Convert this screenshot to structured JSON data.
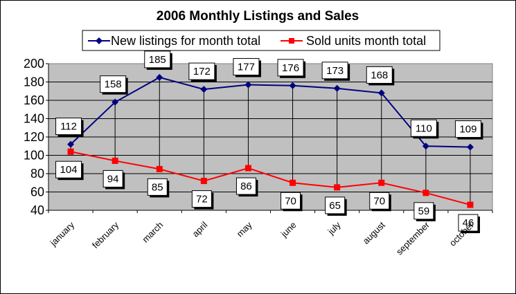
{
  "chart_data": {
    "type": "line",
    "title": "2006 Monthly Listings and Sales",
    "categories": [
      "january",
      "february",
      "march",
      "april",
      "may",
      "june",
      "july",
      "august",
      "september",
      "october"
    ],
    "series": [
      {
        "name": "New listings for month total",
        "color": "#000080",
        "marker": "diamond",
        "values": [
          112,
          158,
          185,
          172,
          177,
          176,
          173,
          168,
          110,
          109
        ]
      },
      {
        "name": "Sold units month total",
        "color": "#ff0000",
        "marker": "square",
        "values": [
          104,
          94,
          85,
          72,
          86,
          70,
          65,
          70,
          59,
          46
        ]
      }
    ],
    "ylim": [
      40,
      200
    ],
    "yticks": [
      40,
      60,
      80,
      100,
      120,
      140,
      160,
      180,
      200
    ],
    "grid": true,
    "legend": "top",
    "plot_background": "#c0c0c0"
  }
}
